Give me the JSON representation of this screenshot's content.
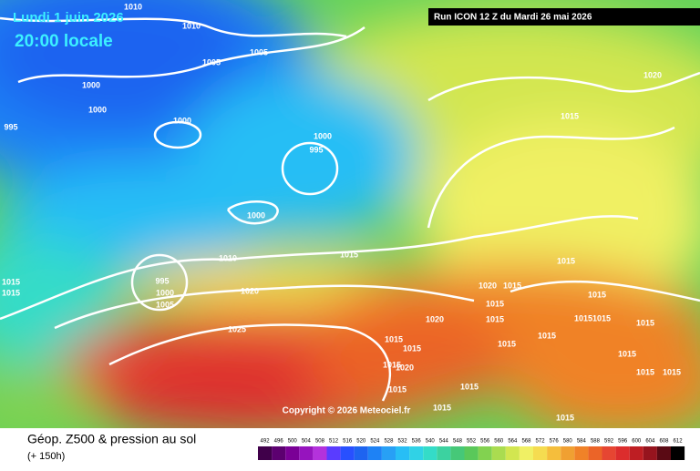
{
  "header": {
    "date": "Lundi 1 juin 2026",
    "time": "20:00 locale",
    "run": "Run ICON 12 Z du Mardi 26 mai 2026"
  },
  "isobar_labels": [
    1010,
    1010,
    1005,
    1005,
    1000,
    1000,
    1000,
    995,
    1000,
    995,
    1000,
    1020,
    1015,
    1010,
    1015,
    995,
    1000,
    1005,
    1015,
    1015,
    1020,
    1025,
    1020,
    1015,
    1015,
    1015,
    1020,
    1015,
    1015,
    1015,
    1015,
    1015,
    1015,
    1015,
    1020,
    1015,
    1015,
    1015,
    1015,
    1015,
    1015,
    1015,
    1015,
    1015,
    1015
  ],
  "copyright": "Copyright © 2026 Meteociel.fr",
  "footer": {
    "title": "Géop. Z500 & pression au sol",
    "lead": "(+ 150h)"
  },
  "legend": {
    "values": [
      492,
      496,
      500,
      504,
      508,
      512,
      516,
      520,
      524,
      528,
      532,
      536,
      540,
      544,
      548,
      552,
      556,
      560,
      564,
      568,
      572,
      576,
      580,
      584,
      588,
      592,
      596,
      600,
      604,
      608,
      612
    ],
    "colors": [
      "#40004a",
      "#5c0070",
      "#7a0096",
      "#9614be",
      "#b432dc",
      "#5a3cff",
      "#2850ff",
      "#1e64f0",
      "#1e82f5",
      "#28a0f5",
      "#28bef5",
      "#30d2e6",
      "#34dcc8",
      "#3cd2a0",
      "#46c878",
      "#5ac85a",
      "#82d250",
      "#aadc50",
      "#d2e650",
      "#f0f064",
      "#f5dc50",
      "#f5be3c",
      "#f0a032",
      "#f08228",
      "#eb6428",
      "#e64632",
      "#dc2d2d",
      "#be1e23",
      "#96141e",
      "#5a0a14",
      "#000000"
    ]
  }
}
